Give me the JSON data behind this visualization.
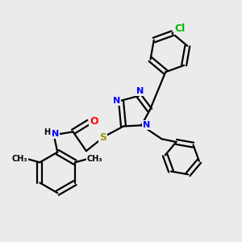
{
  "bg_color": "#ebebeb",
  "bond_color": "#000000",
  "bond_width": 1.6,
  "atom_colors": {
    "N": "#0000ff",
    "O": "#ff0000",
    "S": "#999900",
    "Cl": "#00bb00",
    "C": "#000000",
    "H": "#000000"
  },
  "font_size": 8,
  "fig_size": [
    3.0,
    3.0
  ],
  "dpi": 100
}
